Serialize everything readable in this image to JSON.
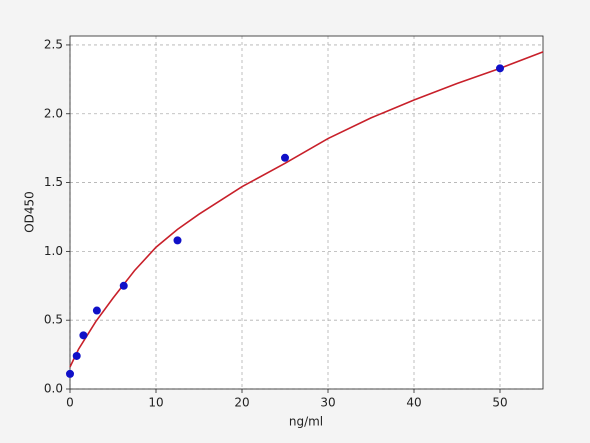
{
  "chart_data": {
    "type": "scatter",
    "xlabel": "ng/ml",
    "ylabel": "OD450",
    "xlim": [
      0,
      55
    ],
    "ylim": [
      0,
      2.565
    ],
    "xticks": [
      0,
      10,
      20,
      30,
      40,
      50
    ],
    "yticks": [
      {
        "value": 0,
        "label": "0.0"
      },
      0.5,
      {
        "value": 1,
        "label": "1.0"
      },
      1.5,
      {
        "value": 2,
        "label": "2.0"
      },
      2.5
    ],
    "grid": true,
    "points": {
      "color": "#1010c8",
      "x": [
        0,
        0.78,
        1.56,
        3.125,
        6.25,
        12.5,
        25,
        50
      ],
      "y": [
        0.11,
        0.24,
        0.39,
        0.57,
        0.75,
        1.08,
        1.68,
        2.33
      ]
    },
    "fit": {
      "color": "#c8202a",
      "x": [
        0,
        1,
        2,
        3,
        5,
        7.5,
        10,
        12.5,
        15,
        20,
        25,
        30,
        35,
        40,
        45,
        50,
        55
      ],
      "y": [
        0.16,
        0.29,
        0.39,
        0.49,
        0.66,
        0.86,
        1.03,
        1.16,
        1.27,
        1.47,
        1.64,
        1.82,
        1.97,
        2.1,
        2.22,
        2.33,
        2.45
      ]
    }
  }
}
